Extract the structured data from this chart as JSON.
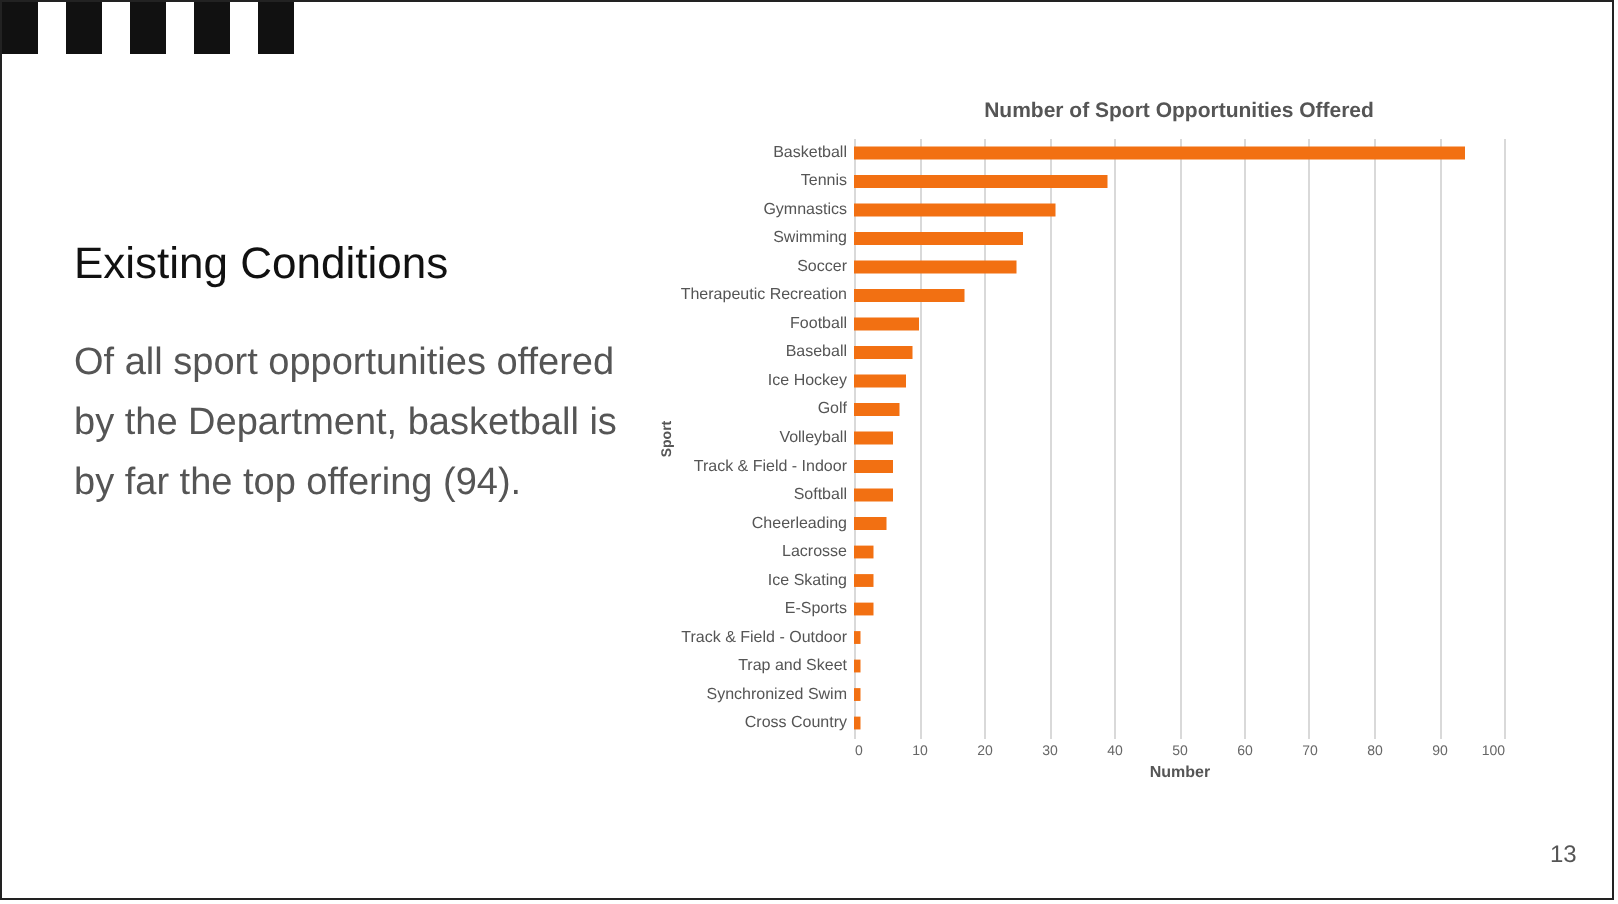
{
  "chart_data": {
    "type": "bar",
    "orientation": "horizontal",
    "title": "Number of Sport Opportunities Offered",
    "xlabel": "Number",
    "ylabel": "Sport",
    "categories": [
      "Basketball",
      "Tennis",
      "Gymnastics",
      "Swimming",
      "Soccer",
      "Therapeutic Recreation",
      "Football",
      "Baseball",
      "Ice Hockey",
      "Golf",
      "Volleyball",
      "Track & Field - Indoor",
      "Softball",
      "Cheerleading",
      "Lacrosse",
      "Ice Skating",
      "E-Sports",
      "Track & Field - Outdoor",
      "Trap and Skeet",
      "Synchronized Swim",
      "Cross Country"
    ],
    "values": [
      94,
      39,
      31,
      26,
      25,
      17,
      10,
      9,
      8,
      7,
      6,
      6,
      6,
      5,
      3,
      3,
      3,
      1,
      1,
      1,
      1
    ],
    "color": "#f27012",
    "xlim": [
      0,
      100
    ],
    "xticks": [
      0,
      10,
      20,
      30,
      40,
      50,
      60,
      70,
      80,
      90,
      100
    ],
    "grid": "x",
    "annotations": [
      "Existing Conditions",
      "Of all sport opportunities offered by the Department, basketball is by far the top offering (94).",
      "13"
    ]
  }
}
